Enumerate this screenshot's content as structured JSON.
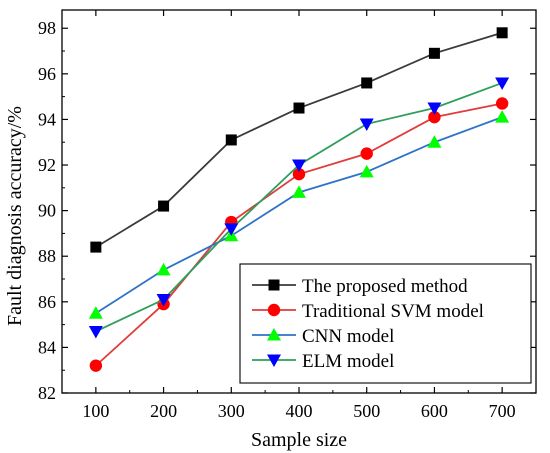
{
  "chart_data": {
    "type": "line",
    "title": "",
    "xlabel": "Sample size",
    "ylabel": "Fault diagnosis accuracy/%",
    "x": [
      100,
      200,
      300,
      400,
      500,
      600,
      700
    ],
    "x_ticks": [
      "100",
      "200",
      "300",
      "400",
      "500",
      "600",
      "700"
    ],
    "y_ticks": [
      "82",
      "84",
      "86",
      "88",
      "90",
      "92",
      "94",
      "96",
      "98"
    ],
    "xlim": [
      50,
      750
    ],
    "ylim": [
      82,
      98.8
    ],
    "grid": false,
    "legend_position": "bottom-right",
    "series": [
      {
        "name": "The proposed method",
        "color": "#3a3a3a",
        "marker": "square",
        "values": [
          88.4,
          90.2,
          93.1,
          94.5,
          95.6,
          96.9,
          97.8
        ]
      },
      {
        "name": "Traditional SVM model",
        "color": "#e03c3c",
        "marker": "circle",
        "values": [
          83.2,
          85.9,
          89.5,
          91.6,
          92.5,
          94.1,
          94.7
        ]
      },
      {
        "name": "CNN model",
        "color": "#2e73c8",
        "marker": "triangle-up",
        "values": [
          85.5,
          87.4,
          88.9,
          90.8,
          91.7,
          93.0,
          94.1
        ]
      },
      {
        "name": "ELM model",
        "color": "#2e9e5a",
        "marker": "triangle-down",
        "values": [
          84.7,
          86.1,
          89.2,
          92.0,
          93.8,
          94.5,
          95.6
        ]
      }
    ]
  },
  "colors": {
    "square_marker": "#000000",
    "circle_marker": "#ff0000",
    "triangle_up_marker": "#00ff00",
    "triangle_down_marker": "#0000ff"
  }
}
